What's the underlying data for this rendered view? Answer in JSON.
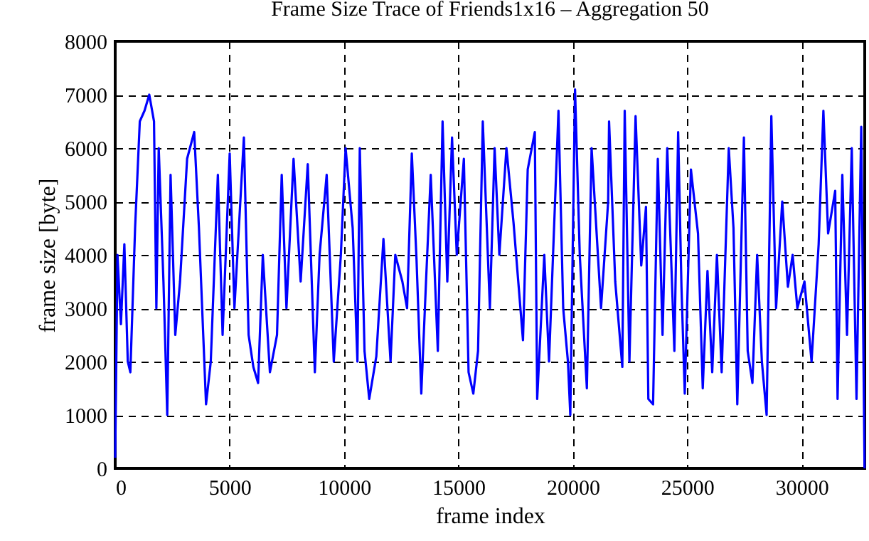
{
  "chart_data": {
    "type": "line",
    "title": "Frame Size Trace of Friends1x16 – Aggregation 50",
    "xlabel": "frame index",
    "ylabel": "frame size [byte]",
    "xlim": [
      0,
      32760
    ],
    "ylim": [
      0,
      8000
    ],
    "xticks": [
      0,
      5000,
      10000,
      15000,
      20000,
      25000,
      30000
    ],
    "yticks": [
      0,
      1000,
      2000,
      3000,
      4000,
      5000,
      6000,
      7000,
      8000
    ],
    "grid": true,
    "line_style": "solid",
    "series": [
      {
        "color": "#0000ff",
        "x": [
          0,
          100,
          250,
          400,
          550,
          662,
          869,
          1075,
          1282,
          1489,
          1696,
          1799,
          1902,
          2109,
          2275,
          2420,
          2626,
          2833,
          3143,
          3453,
          3660,
          3970,
          4177,
          4487,
          4694,
          5004,
          5211,
          5624,
          5831,
          6038,
          6245,
          6451,
          6762,
          7072,
          7278,
          7485,
          7795,
          8106,
          8416,
          8726,
          8933,
          9243,
          9553,
          9863,
          10070,
          10380,
          10587,
          10690,
          10897,
          11103,
          11413,
          11724,
          12034,
          12241,
          12551,
          12757,
          12964,
          13171,
          13378,
          13585,
          13791,
          14101,
          14308,
          14515,
          14722,
          14929,
          15239,
          15445,
          15652,
          15859,
          16066,
          16376,
          16583,
          16790,
          17100,
          17410,
          17617,
          17823,
          18030,
          18340,
          18444,
          18754,
          18961,
          19374,
          19581,
          19788,
          19891,
          20098,
          20305,
          20615,
          20822,
          21235,
          21546,
          21586,
          21855,
          22165,
          22269,
          22475,
          22744,
          22992,
          23199,
          23302,
          23509,
          23716,
          23923,
          24129,
          24440,
          24605,
          24750,
          24894,
          25163,
          25473,
          25680,
          25887,
          26094,
          26300,
          26507,
          26817,
          27024,
          27190,
          27479,
          27645,
          27851,
          28058,
          28265,
          28472,
          28678,
          28885,
          29154,
          29402,
          29609,
          29815,
          30126,
          30436,
          30746,
          30953,
          31159,
          31469,
          31573,
          31780,
          31986,
          32193,
          32400,
          32607,
          32752
        ],
        "values": [
          200,
          4000,
          2700,
          4200,
          2000,
          1800,
          4500,
          6500,
          6700,
          7000,
          6500,
          3000,
          6000,
          3500,
          1000,
          5500,
          2500,
          3500,
          5800,
          6300,
          4500,
          1200,
          2000,
          5500,
          2500,
          5900,
          3000,
          6200,
          2500,
          1900,
          1600,
          4000,
          1800,
          2500,
          5500,
          3000,
          5800,
          3500,
          5700,
          1800,
          4000,
          5500,
          2000,
          4000,
          6000,
          4500,
          2000,
          6000,
          2200,
          1300,
          2100,
          4300,
          2000,
          4000,
          3500,
          3000,
          5900,
          3900,
          1400,
          3500,
          5500,
          2200,
          6500,
          3500,
          6200,
          4000,
          5800,
          1800,
          1400,
          2200,
          6500,
          3000,
          6000,
          4000,
          6000,
          4600,
          3500,
          2400,
          5600,
          6300,
          1300,
          4000,
          2000,
          6700,
          3000,
          2000,
          1000,
          7100,
          4000,
          1500,
          6000,
          3000,
          5000,
          6500,
          3500,
          1900,
          6700,
          2000,
          6600,
          3800,
          4900,
          1300,
          1200,
          5800,
          2500,
          6000,
          2200,
          6300,
          3400,
          1400,
          5600,
          4400,
          1500,
          3700,
          1800,
          4000,
          1800,
          6000,
          4500,
          1200,
          6200,
          2200,
          1600,
          4000,
          2000,
          1000,
          6600,
          3000,
          5000,
          3400,
          4000,
          3000,
          3500,
          2000,
          4200,
          6700,
          4400,
          5200,
          1300,
          5500,
          2500,
          6000,
          1300,
          6400,
          0
        ]
      }
    ]
  }
}
